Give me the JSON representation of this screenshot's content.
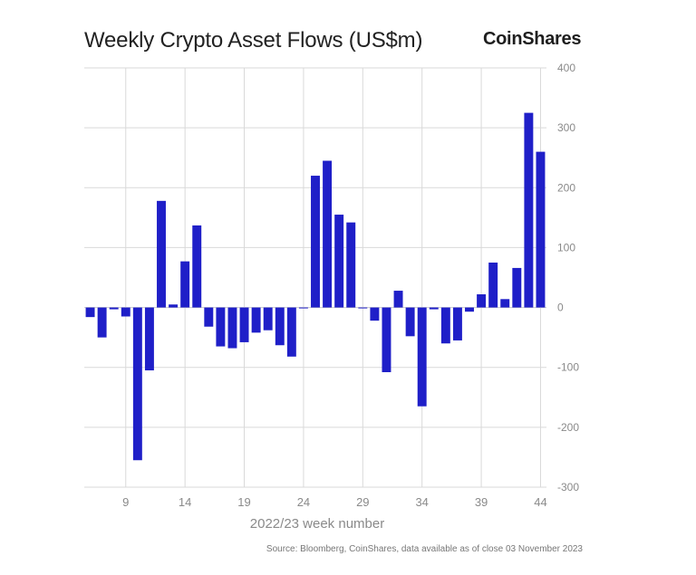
{
  "header": {
    "title": "Weekly Crypto Asset Flows (US$m)",
    "brand": "CoinShares"
  },
  "footer": {
    "source": "Source: Bloomberg, CoinShares, data available as of close 03 November 2023"
  },
  "colors": {
    "bar": "#1f1fc8",
    "grid": "#d9d9d9",
    "tick_text": "#8a8a8a"
  },
  "chart_data": {
    "type": "bar",
    "title": "Weekly Crypto Asset Flows (US$m)",
    "xlabel": "2022/23 week number",
    "ylabel": "",
    "x": [
      6,
      7,
      8,
      9,
      10,
      11,
      12,
      13,
      14,
      15,
      16,
      17,
      18,
      19,
      20,
      21,
      22,
      23,
      24,
      25,
      26,
      27,
      28,
      29,
      30,
      31,
      32,
      33,
      34,
      35,
      36,
      37,
      38,
      39,
      40,
      41,
      42,
      43,
      44
    ],
    "values": [
      -16,
      -50,
      -3,
      -15,
      -255,
      -105,
      178,
      5,
      77,
      137,
      -32,
      -65,
      -68,
      -58,
      -42,
      -38,
      -63,
      -82,
      -1,
      220,
      245,
      155,
      142,
      -1,
      -22,
      -108,
      28,
      -48,
      -165,
      -3,
      -60,
      -55,
      -7,
      22,
      75,
      14,
      66,
      325,
      260
    ],
    "xticks": [
      9,
      14,
      19,
      24,
      29,
      34,
      39,
      44
    ],
    "ylim": [
      -300,
      400
    ],
    "yticks": [
      -300,
      -200,
      -100,
      0,
      100,
      200,
      300,
      400
    ],
    "ytick_labels": [
      "-300",
      "-200",
      "-100",
      "0",
      "100",
      "200",
      "300",
      "400"
    ],
    "grid": true,
    "y_axis_side": "right"
  }
}
